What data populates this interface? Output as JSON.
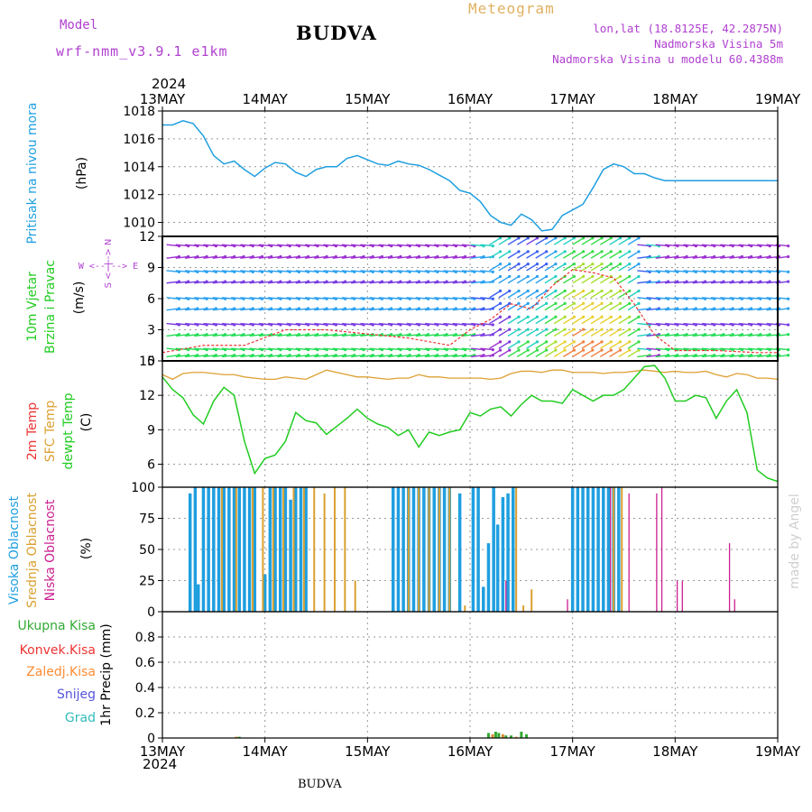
{
  "header": {
    "model_label": "Model",
    "model_name": "wrf-nmm_v3.9.1  e1km",
    "title": "BUDVA",
    "meteogram": "Meteogram",
    "lonlat": "lon,lat (18.8125E, 42.2875N)",
    "elevation": "Nadmorska Visina 5m",
    "model_elevation": "Nadmorska Visina u modelu 60.4388m"
  },
  "time_axis": {
    "year": "2024",
    "labels": [
      "13MAY",
      "14MAY",
      "15MAY",
      "16MAY",
      "17MAY",
      "18MAY",
      "19MAY"
    ]
  },
  "footer": {
    "station": "BUDVA",
    "watermark": "made by Angel"
  },
  "panels": {
    "pressure": {
      "label": "Pritisak na nivou mora",
      "unit": "(hPa)"
    },
    "wind": {
      "label1": "10m Vjetar",
      "label2": "Brzina i Pravac",
      "unit": "(m/s)",
      "compass": "W <--|--> E",
      "compass_v": "S <--|--> N"
    },
    "temp": {
      "label_2m": "2m Temp",
      "label_sfc": "SFC Temp",
      "label_dew": "dewpt Temp",
      "unit": "(C)"
    },
    "cloud": {
      "label_high": "Visoka Oblacnost",
      "label_mid": "Srednja Oblacnost",
      "label_low": "Niska Oblacnost",
      "unit": "(%)"
    },
    "precip": {
      "label_total": "Ukupna Kisa",
      "label_conv": "Konvek.Kisa",
      "label_frz": "Zaledj.Kisa",
      "label_snow": "Snijeg",
      "label_hail": "Grad",
      "unit": "1hr Precip (mm)"
    }
  },
  "colors": {
    "pressure": "#1f9fe0",
    "dewpoint": "#22cc22",
    "sfc_temp": "#dda033",
    "temp2m": "#ee3333",
    "high_cloud": "#1f9fe0",
    "mid_cloud": "#d9a030",
    "low_cloud": "#cc1f8f",
    "total_precip": "#33aa33",
    "conv_precip": "#ee3333",
    "frz_precip": "#ff8c33",
    "snow": "#5555dd",
    "hail": "#33bbbb",
    "purple_text": "#b040d0"
  },
  "chart_data": [
    {
      "type": "line",
      "name": "pressure",
      "x_days": [
        0,
        0.1,
        0.2,
        0.3,
        0.4,
        0.5,
        0.6,
        0.7,
        0.8,
        0.9,
        1.0,
        1.1,
        1.2,
        1.3,
        1.4,
        1.5,
        1.6,
        1.7,
        1.8,
        1.9,
        2.0,
        2.1,
        2.2,
        2.3,
        2.4,
        2.5,
        2.6,
        2.7,
        2.8,
        2.9,
        3.0,
        3.1,
        3.2,
        3.3,
        3.4,
        3.5,
        3.6,
        3.7,
        3.8,
        3.9,
        4.0,
        4.1,
        4.2,
        4.3,
        4.4,
        4.5,
        4.6,
        4.7,
        4.8,
        4.9,
        5.0,
        5.1,
        5.2,
        5.3,
        5.4,
        5.5,
        5.6,
        5.7,
        5.8,
        5.9,
        6.0
      ],
      "values": [
        1017,
        1017,
        1017.3,
        1017.1,
        1016.2,
        1014.8,
        1014.2,
        1014.4,
        1013.8,
        1013.3,
        1013.9,
        1014.3,
        1014.2,
        1013.6,
        1013.3,
        1013.8,
        1014,
        1014,
        1014.6,
        1014.8,
        1014.5,
        1014.2,
        1014.1,
        1014.4,
        1014.2,
        1014.1,
        1013.8,
        1013.4,
        1013,
        1012.3,
        1012.1,
        1011.5,
        1010.5,
        1010,
        1009.8,
        1010.6,
        1010.2,
        1009.4,
        1009.5,
        1010.5,
        1010.9,
        1011.3,
        1012.5,
        1013.8,
        1014.2,
        1014.0,
        1013.5,
        1013.5,
        1013.2,
        1013.0,
        1013.0,
        1013.0,
        1013.0,
        1013.0,
        1013.0,
        1013.0,
        1013.0,
        1013.0,
        1013.0,
        1013.0,
        1013.0
      ],
      "ylim": [
        1009,
        1018
      ],
      "yticks": [
        1010,
        1012,
        1014,
        1016,
        1018
      ]
    },
    {
      "type": "line",
      "name": "wind",
      "ylim": [
        0,
        12
      ],
      "yticks": [
        0,
        3,
        6,
        9,
        12
      ],
      "x_days": [
        0,
        0.4,
        0.8,
        1.2,
        1.6,
        2.0,
        2.4,
        2.8,
        3.0,
        3.2,
        3.4,
        3.6,
        3.8,
        4.0,
        4.2,
        4.4,
        4.6,
        4.8,
        5.0,
        5.4,
        5.8,
        6.0
      ],
      "speed": [
        0.8,
        1.5,
        1.5,
        3.0,
        3.0,
        2.6,
        2.2,
        1.5,
        3.0,
        4.0,
        5.5,
        5.0,
        7.2,
        8.8,
        8.5,
        8.0,
        5.5,
        2.5,
        1.0,
        1.0,
        0.8,
        0.8
      ]
    },
    {
      "type": "line",
      "name": "temperature",
      "ylim": [
        4,
        15
      ],
      "yticks": [
        6,
        9,
        12,
        15
      ],
      "x_days": [
        0,
        0.1,
        0.2,
        0.3,
        0.4,
        0.5,
        0.6,
        0.7,
        0.8,
        0.9,
        1.0,
        1.1,
        1.2,
        1.3,
        1.4,
        1.5,
        1.6,
        1.7,
        1.8,
        1.9,
        2.0,
        2.1,
        2.2,
        2.3,
        2.4,
        2.5,
        2.6,
        2.7,
        2.8,
        2.9,
        3.0,
        3.1,
        3.2,
        3.3,
        3.4,
        3.5,
        3.6,
        3.7,
        3.8,
        3.9,
        4.0,
        4.1,
        4.2,
        4.3,
        4.4,
        4.5,
        4.6,
        4.7,
        4.8,
        4.9,
        5.0,
        5.1,
        5.2,
        5.3,
        5.4,
        5.5,
        5.6,
        5.7,
        5.8,
        5.9,
        6.0
      ],
      "dewpoint": [
        13.6,
        12.5,
        11.8,
        10.3,
        9.5,
        11.5,
        12.7,
        12.0,
        8.0,
        5.2,
        6.5,
        6.8,
        8.0,
        10.5,
        9.8,
        9.6,
        8.6,
        9.3,
        10.0,
        10.8,
        10.0,
        9.5,
        9.2,
        8.5,
        9.0,
        7.5,
        8.8,
        8.5,
        8.8,
        9.0,
        10.5,
        10.2,
        10.8,
        11.0,
        10.2,
        11.2,
        12.0,
        11.5,
        11.5,
        11.3,
        12.5,
        12.0,
        11.5,
        12.0,
        12.0,
        12.5,
        13.5,
        14.5,
        14.6,
        13.5,
        11.5,
        11.5,
        12.0,
        11.8,
        10.0,
        11.5,
        12.5,
        10.5,
        5.5,
        4.8,
        4.5
      ],
      "sfc_temp": [
        13.8,
        13.4,
        13.9,
        14.0,
        14.0,
        13.9,
        13.8,
        13.8,
        13.6,
        13.5,
        13.4,
        13.4,
        13.6,
        13.5,
        13.4,
        13.8,
        14.2,
        14.0,
        13.8,
        13.6,
        13.6,
        13.5,
        13.4,
        13.5,
        13.5,
        13.8,
        13.6,
        13.6,
        13.5,
        13.5,
        13.5,
        13.5,
        13.4,
        13.5,
        13.9,
        14.1,
        14.1,
        14.0,
        14.2,
        14.2,
        14.0,
        14.0,
        14.0,
        13.9,
        14.0,
        14.0,
        14.1,
        14.2,
        14.1,
        14.0,
        14.1,
        14.0,
        14.0,
        14.1,
        13.8,
        13.6,
        13.9,
        13.8,
        13.5,
        13.5,
        13.4
      ]
    },
    {
      "type": "bar",
      "name": "cloud_cover",
      "ylim": [
        0,
        100
      ],
      "yticks": [
        0,
        25,
        50,
        75,
        100
      ],
      "high_x_days": [
        0.27,
        0.32,
        0.35,
        0.4,
        0.45,
        0.5,
        0.55,
        0.6,
        0.65,
        0.7,
        0.75,
        0.8,
        0.85,
        0.9,
        1.0,
        1.05,
        1.1,
        1.15,
        1.2,
        1.25,
        1.3,
        1.35,
        1.4,
        2.25,
        2.3,
        2.35,
        2.4,
        2.45,
        2.5,
        2.55,
        2.6,
        2.65,
        2.7,
        2.75,
        2.8,
        2.9,
        3.03,
        3.08,
        3.13,
        3.18,
        3.23,
        3.27,
        3.32,
        3.37,
        3.42,
        4.0,
        4.05,
        4.1,
        4.15,
        4.2,
        4.25,
        4.3,
        4.35,
        4.4,
        4.45
      ],
      "high_values": [
        95,
        100,
        22,
        100,
        100,
        100,
        100,
        100,
        100,
        100,
        100,
        100,
        100,
        100,
        30,
        100,
        100,
        100,
        100,
        90,
        100,
        100,
        100,
        100,
        100,
        100,
        100,
        100,
        100,
        100,
        100,
        100,
        100,
        100,
        100,
        95,
        100,
        100,
        20,
        55,
        100,
        70,
        92,
        95,
        100,
        100,
        100,
        100,
        100,
        100,
        100,
        100,
        100,
        100,
        100
      ],
      "mid_x_days": [
        0.58,
        0.72,
        0.88,
        0.98,
        1.08,
        1.18,
        1.28,
        1.38,
        1.48,
        1.58,
        1.68,
        1.78,
        1.88,
        2.4,
        2.5,
        2.6,
        2.7,
        2.8,
        2.95,
        3.45,
        3.52,
        3.6,
        4.4,
        4.48
      ],
      "mid_values": [
        100,
        100,
        100,
        100,
        100,
        100,
        100,
        100,
        100,
        95,
        100,
        100,
        25,
        100,
        100,
        100,
        100,
        100,
        5,
        100,
        5,
        18,
        100,
        100
      ],
      "low_x_days": [
        3.35,
        3.95,
        4.37,
        4.55,
        4.82,
        4.87,
        5.02,
        5.07,
        5.53,
        5.58,
        5.75,
        5.78
      ],
      "low_values": [
        25,
        10,
        100,
        95,
        95,
        100,
        25,
        25,
        55,
        10,
        0,
        0
      ]
    },
    {
      "type": "bar",
      "name": "precip_1hr",
      "ylim": [
        0,
        1.0
      ],
      "yticks": [
        0,
        0.2,
        0.4,
        0.6,
        0.8
      ],
      "x_days": [
        0.72,
        0.75,
        3.18,
        3.22,
        3.25,
        3.28,
        3.32,
        3.35,
        3.4,
        3.45,
        3.5,
        3.55
      ],
      "values": [
        0.01,
        0.01,
        0.04,
        0.03,
        0.05,
        0.04,
        0.03,
        0.02,
        0.02,
        0.01,
        0.05,
        0.03
      ]
    }
  ]
}
